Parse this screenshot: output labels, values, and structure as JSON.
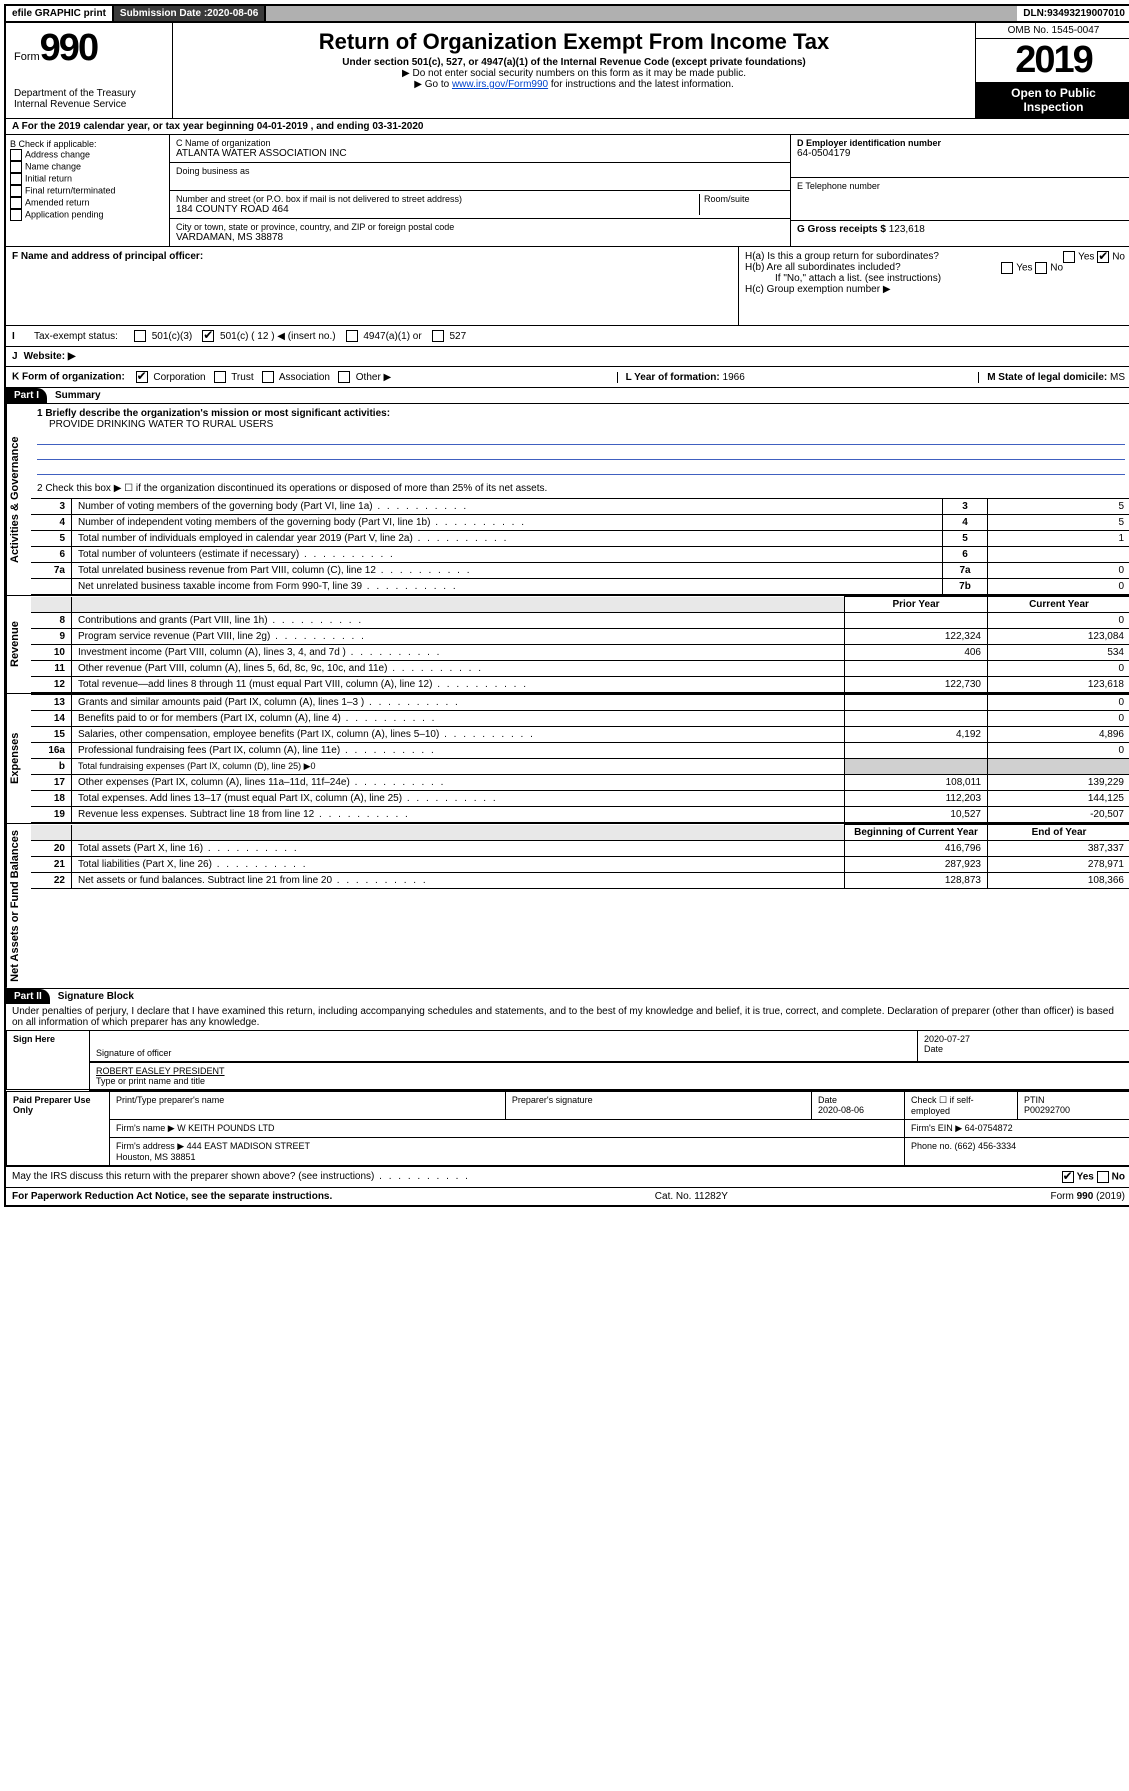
{
  "topbar": {
    "efile": "efile GRAPHIC print",
    "submission_label": "Submission Date : ",
    "submission_date": "2020-08-06",
    "dln_label": "DLN: ",
    "dln": "93493219007010"
  },
  "header": {
    "form_word": "Form",
    "form_num": "990",
    "title": "Return of Organization Exempt From Income Tax",
    "sub1": "Under section 501(c), 527, or 4947(a)(1) of the Internal Revenue Code (except private foundations)",
    "sub2": "▶ Do not enter social security numbers on this form as it may be made public.",
    "sub3_pre": "▶ Go to ",
    "sub3_link": "www.irs.gov/Form990",
    "sub3_post": " for instructions and the latest information.",
    "omb": "OMB No. 1545-0047",
    "year": "2019",
    "open": "Open to Public Inspection",
    "dept": "Department of the Treasury\nInternal Revenue Service"
  },
  "lineA": "A For the 2019 calendar year, or tax year beginning 04-01-2019    , and ending 03-31-2020",
  "sectionB": {
    "b_label": "B Check if applicable:",
    "b_items": [
      "Address change",
      "Name change",
      "Initial return",
      "Final return/terminated",
      "Amended return",
      "Application pending"
    ],
    "c_name_lbl": "C Name of organization",
    "c_name": "ATLANTA WATER ASSOCIATION INC",
    "dba_lbl": "Doing business as",
    "addr_lbl": "Number and street (or P.O. box if mail is not delivered to street address)",
    "room_lbl": "Room/suite",
    "addr": "184 COUNTY ROAD 464",
    "city_lbl": "City or town, state or province, country, and ZIP or foreign postal code",
    "city": "VARDAMAN, MS  38878",
    "d_lbl": "D Employer identification number",
    "d_val": "64-0504179",
    "e_lbl": "E Telephone number",
    "g_lbl": "G Gross receipts $ ",
    "g_val": "123,618"
  },
  "sectionF": {
    "f_lbl": "F  Name and address of principal officer:",
    "ha": "H(a)  Is this a group return for subordinates?",
    "hb": "H(b)  Are all subordinates included?",
    "hb_note": "If \"No,\" attach a list. (see instructions)",
    "hc": "H(c)  Group exemption number ▶",
    "yes": "Yes",
    "no": "No"
  },
  "taxstatus": {
    "label": "Tax-exempt status:",
    "opts": [
      "501(c)(3)",
      "501(c) ( 12 ) ◀ (insert no.)",
      "4947(a)(1) or",
      "527"
    ],
    "checked_idx": 1
  },
  "website": {
    "j": "J",
    "label": "Website: ▶"
  },
  "lineK": {
    "k": "K Form of organization:",
    "opts": [
      "Corporation",
      "Trust",
      "Association",
      "Other ▶"
    ],
    "checked_idx": 0,
    "l_lbl": "L Year of formation: ",
    "l_val": "1966",
    "m_lbl": "M State of legal domicile: ",
    "m_val": "MS"
  },
  "part1": {
    "part": "Part I",
    "title": "Summary",
    "mission_lbl": "1  Briefly describe the organization's mission or most significant activities:",
    "mission": "PROVIDE DRINKING WATER TO RURAL USERS",
    "line2": "2   Check this box ▶ ☐  if the organization discontinued its operations or disposed of more than 25% of its net assets.",
    "rows_gov": [
      {
        "n": "3",
        "t": "Number of voting members of the governing body (Part VI, line 1a)",
        "k": "3",
        "v": "5"
      },
      {
        "n": "4",
        "t": "Number of independent voting members of the governing body (Part VI, line 1b)",
        "k": "4",
        "v": "5"
      },
      {
        "n": "5",
        "t": "Total number of individuals employed in calendar year 2019 (Part V, line 2a)",
        "k": "5",
        "v": "1"
      },
      {
        "n": "6",
        "t": "Total number of volunteers (estimate if necessary)",
        "k": "6",
        "v": ""
      },
      {
        "n": "7a",
        "t": "Total unrelated business revenue from Part VIII, column (C), line 12",
        "k": "7a",
        "v": "0"
      },
      {
        "n": "",
        "t": "Net unrelated business taxable income from Form 990-T, line 39",
        "k": "7b",
        "v": "0"
      }
    ],
    "hdr_prior": "Prior Year",
    "hdr_curr": "Current Year",
    "rows_rev": [
      {
        "n": "8",
        "t": "Contributions and grants (Part VIII, line 1h)",
        "p": "",
        "c": "0"
      },
      {
        "n": "9",
        "t": "Program service revenue (Part VIII, line 2g)",
        "p": "122,324",
        "c": "123,084"
      },
      {
        "n": "10",
        "t": "Investment income (Part VIII, column (A), lines 3, 4, and 7d )",
        "p": "406",
        "c": "534"
      },
      {
        "n": "11",
        "t": "Other revenue (Part VIII, column (A), lines 5, 6d, 8c, 9c, 10c, and 11e)",
        "p": "",
        "c": "0"
      },
      {
        "n": "12",
        "t": "Total revenue—add lines 8 through 11 (must equal Part VIII, column (A), line 12)",
        "p": "122,730",
        "c": "123,618"
      }
    ],
    "rows_exp": [
      {
        "n": "13",
        "t": "Grants and similar amounts paid (Part IX, column (A), lines 1–3 )",
        "p": "",
        "c": "0"
      },
      {
        "n": "14",
        "t": "Benefits paid to or for members (Part IX, column (A), line 4)",
        "p": "",
        "c": "0"
      },
      {
        "n": "15",
        "t": "Salaries, other compensation, employee benefits (Part IX, column (A), lines 5–10)",
        "p": "4,192",
        "c": "4,896"
      },
      {
        "n": "16a",
        "t": "Professional fundraising fees (Part IX, column (A), line 11e)",
        "p": "",
        "c": "0"
      },
      {
        "n": "b",
        "t": "Total fundraising expenses (Part IX, column (D), line 25) ▶0",
        "p": "—",
        "c": "—"
      },
      {
        "n": "17",
        "t": "Other expenses (Part IX, column (A), lines 11a–11d, 11f–24e)",
        "p": "108,011",
        "c": "139,229"
      },
      {
        "n": "18",
        "t": "Total expenses. Add lines 13–17 (must equal Part IX, column (A), line 25)",
        "p": "112,203",
        "c": "144,125"
      },
      {
        "n": "19",
        "t": "Revenue less expenses. Subtract line 18 from line 12",
        "p": "10,527",
        "c": "-20,507"
      }
    ],
    "hdr_beg": "Beginning of Current Year",
    "hdr_end": "End of Year",
    "rows_net": [
      {
        "n": "20",
        "t": "Total assets (Part X, line 16)",
        "p": "416,796",
        "c": "387,337"
      },
      {
        "n": "21",
        "t": "Total liabilities (Part X, line 26)",
        "p": "287,923",
        "c": "278,971"
      },
      {
        "n": "22",
        "t": "Net assets or fund balances. Subtract line 21 from line 20",
        "p": "128,873",
        "c": "108,366"
      }
    ],
    "side_gov": "Activities & Governance",
    "side_rev": "Revenue",
    "side_exp": "Expenses",
    "side_net": "Net Assets or Fund Balances"
  },
  "part2": {
    "part": "Part II",
    "title": "Signature Block",
    "decl": "Under penalties of perjury, I declare that I have examined this return, including accompanying schedules and statements, and to the best of my knowledge and belief, it is true, correct, and complete. Declaration of preparer (other than officer) is based on all information of which preparer has any knowledge."
  },
  "sign": {
    "here": "Sign Here",
    "sig_officer": "Signature of officer",
    "date": "Date",
    "date_val": "2020-07-27",
    "name_title": "ROBERT EASLEY PRESIDENT",
    "name_lbl": "Type or print name and title"
  },
  "paid": {
    "label": "Paid Preparer Use Only",
    "h1": "Print/Type preparer's name",
    "h2": "Preparer's signature",
    "h3": "Date",
    "h3v": "2020-08-06",
    "h4": "Check ☐ if self-employed",
    "h5": "PTIN",
    "h5v": "P00292700",
    "firm_name_lbl": "Firm's name    ▶ ",
    "firm_name": "W KEITH POUNDS LTD",
    "firm_ein_lbl": "Firm's EIN ▶ ",
    "firm_ein": "64-0754872",
    "firm_addr_lbl": "Firm's address ▶ ",
    "firm_addr": "444 EAST MADISON STREET\nHouston, MS  38851",
    "phone_lbl": "Phone no. ",
    "phone": "(662) 456-3334"
  },
  "footer": {
    "discuss": "May the IRS discuss this return with the preparer shown above? (see instructions)",
    "yes": "Yes",
    "no": "No",
    "pra": "For Paperwork Reduction Act Notice, see the separate instructions.",
    "cat": "Cat. No. 11282Y",
    "form": "Form 990 (2019)"
  }
}
